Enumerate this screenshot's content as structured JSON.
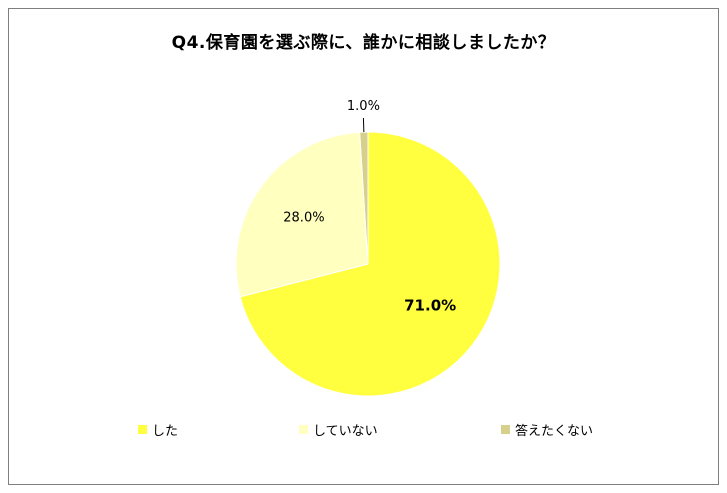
{
  "chart_data": {
    "type": "pie",
    "title": "Q4.保育園を選ぶ際に、誰かに相談しましたか？",
    "slices": [
      {
        "name": "した",
        "value": 71.0,
        "label": "71.0%",
        "color": "#ffff3f"
      },
      {
        "name": "していない",
        "value": 28.0,
        "label": "28.0%",
        "color": "#ffffc0"
      },
      {
        "name": "答えたくない",
        "value": 1.0,
        "label": "1.0%",
        "color": "#d6d08b"
      }
    ],
    "legend_position": "bottom",
    "start_angle_deg": 0,
    "direction": "clockwise"
  }
}
